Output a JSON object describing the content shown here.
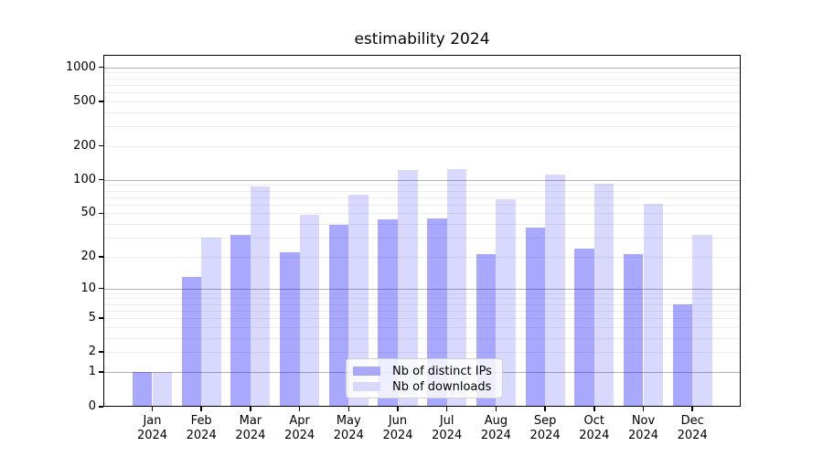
{
  "title": "estimability 2024",
  "chart_data": {
    "type": "bar",
    "title": "estimability 2024",
    "xlabel": "",
    "ylabel": "",
    "yscale": "log1p",
    "ylim": [
      0,
      1300
    ],
    "grid": "on",
    "legend_position": "lower center",
    "yticks": [
      1000,
      500,
      200,
      100,
      50,
      20,
      10,
      5,
      2,
      1,
      0
    ],
    "minor_gridline_values": [
      2,
      3,
      4,
      5,
      6,
      7,
      8,
      9,
      20,
      30,
      40,
      50,
      60,
      70,
      80,
      90,
      200,
      300,
      400,
      500,
      600,
      700,
      800,
      900
    ],
    "major_gridline_values": [
      1,
      10,
      100,
      1000
    ],
    "months": [
      "Jan",
      "Feb",
      "Mar",
      "Apr",
      "May",
      "Jun",
      "Jul",
      "Aug",
      "Sep",
      "Oct",
      "Nov",
      "Dec"
    ],
    "year_label": "2024",
    "categories": [
      "Jan 2024",
      "Feb 2024",
      "Mar 2024",
      "Apr 2024",
      "May 2024",
      "Jun 2024",
      "Jul 2024",
      "Aug 2024",
      "Sep 2024",
      "Oct 2024",
      "Nov 2024",
      "Dec 2024"
    ],
    "series": [
      {
        "name": "Nb of distinct IPs",
        "fill": "rgba(0,0,255,0.34)",
        "swatch_color": "#a9a9f7",
        "values": [
          1,
          13,
          32,
          22,
          39,
          44,
          45,
          21,
          37,
          24,
          21,
          7
        ]
      },
      {
        "name": "Nb of downloads",
        "fill": "rgba(0,0,255,0.148)",
        "swatch_color": "#d9d9fb",
        "values": [
          1,
          30,
          87,
          48,
          73,
          122,
          125,
          67,
          111,
          92,
          61,
          32
        ]
      }
    ]
  },
  "legend": {
    "items": [
      {
        "label": "Nb of distinct IPs"
      },
      {
        "label": "Nb of downloads"
      }
    ]
  }
}
